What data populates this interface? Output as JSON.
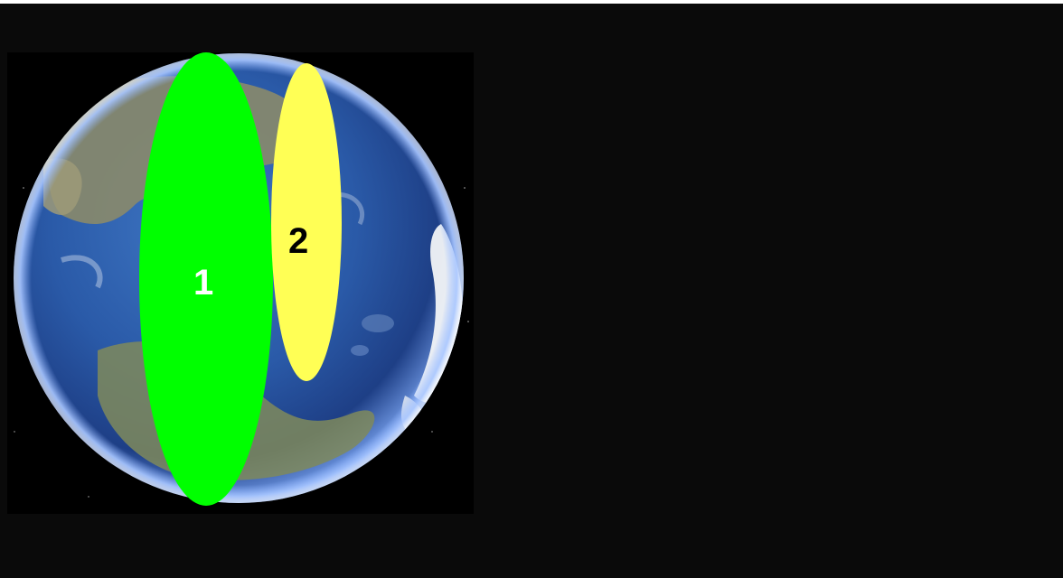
{
  "map": {
    "regions": [
      {
        "label": "1",
        "fill": "#00ff00",
        "label_color": "#ffffff"
      },
      {
        "label": "2",
        "fill": "#ffff55",
        "label_color": "#000000"
      }
    ],
    "colors": {
      "space": "#000000",
      "ocean": "#2a5aa8",
      "land": "#8a8a6a",
      "ice": "#f2f4f7",
      "atmosphere": "#8fb4ff"
    }
  }
}
